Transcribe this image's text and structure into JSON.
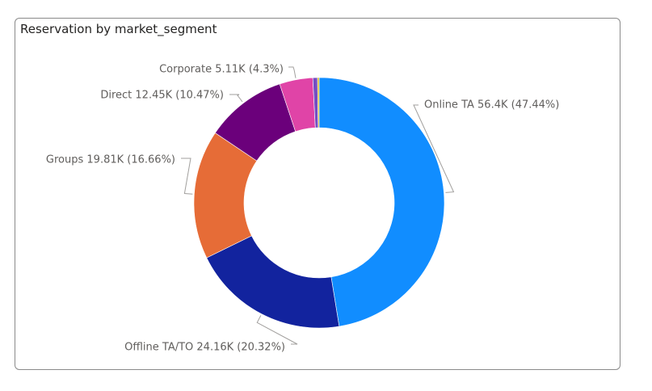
{
  "card": {
    "title": "Reservation by market_segment"
  },
  "chart_data": {
    "type": "pie",
    "title": "Reservation by market_segment",
    "donut": true,
    "slices": [
      {
        "name": "Online TA",
        "value": 56.4,
        "value_label": "56.4K",
        "percent": 47.44,
        "percent_label": "47.44%",
        "color": "#118DFF"
      },
      {
        "name": "Offline TA/TO",
        "value": 24.16,
        "value_label": "24.16K",
        "percent": 20.32,
        "percent_label": "20.32%",
        "color": "#12239E"
      },
      {
        "name": "Groups",
        "value": 19.81,
        "value_label": "19.81K",
        "percent": 16.66,
        "percent_label": "16.66%",
        "color": "#E66C37"
      },
      {
        "name": "Direct",
        "value": 12.45,
        "value_label": "12.45K",
        "percent": 10.47,
        "percent_label": "10.47%",
        "color": "#6B007B"
      },
      {
        "name": "Corporate",
        "value": 5.11,
        "value_label": "5.11K",
        "percent": 4.3,
        "percent_label": "4.3%",
        "color": "#E044A7"
      },
      {
        "name": "",
        "value": 0.72,
        "percent": 0.6,
        "color": "#744EC2"
      },
      {
        "name": "",
        "value": 0.24,
        "percent": 0.2,
        "color": "#D9B300"
      }
    ],
    "labels": [
      {
        "text": "Online TA 56.4K (47.44%)"
      },
      {
        "text": "Offline TA/TO 24.16K (20.32%)"
      },
      {
        "text": "Groups 19.81K (16.66%)"
      },
      {
        "text": "Direct 12.45K (10.47%)"
      },
      {
        "text": "Corporate 5.11K (4.3%)"
      }
    ],
    "unit_suffix": "K",
    "legend": "none"
  }
}
